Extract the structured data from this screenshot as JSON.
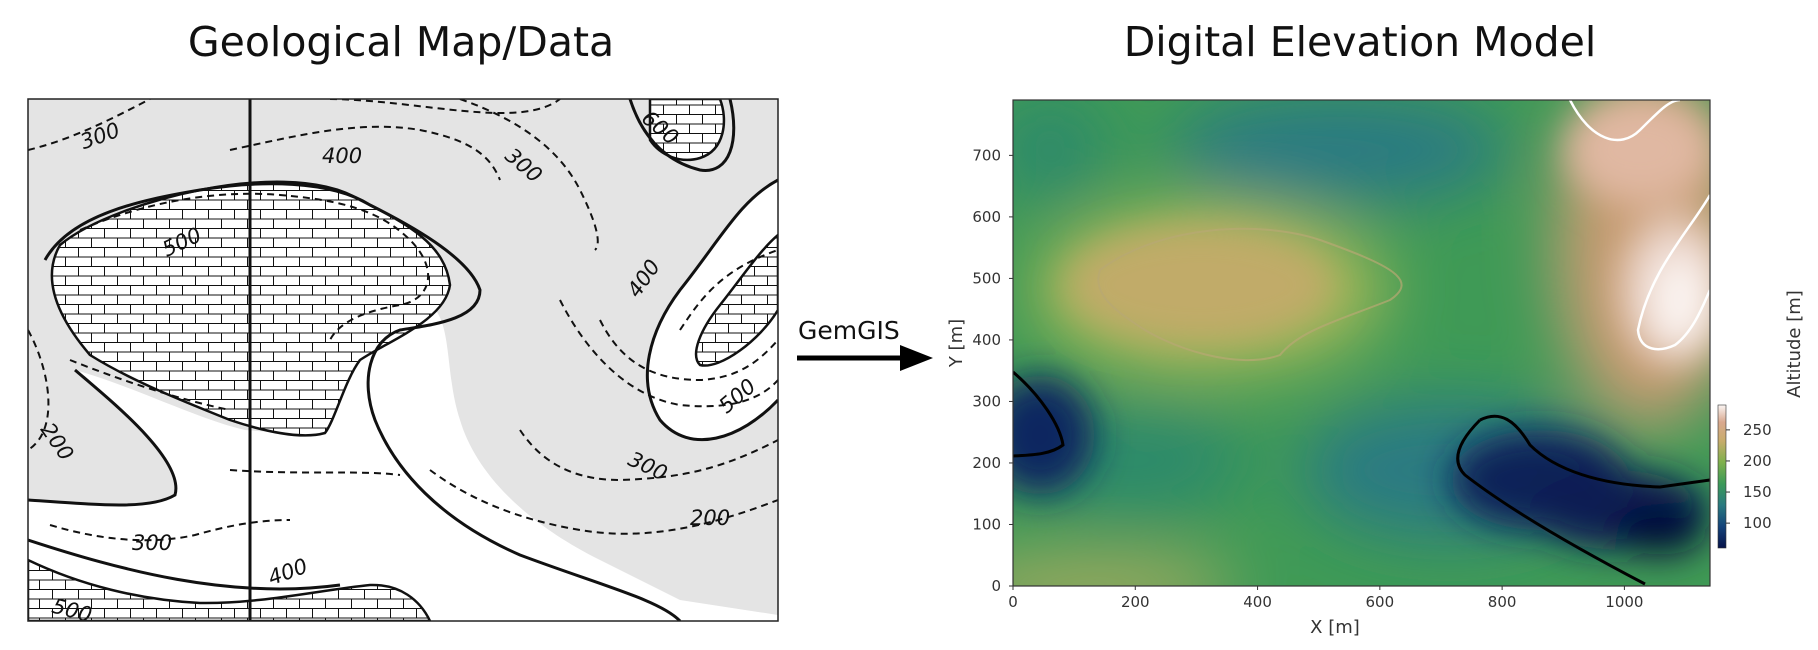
{
  "left_panel": {
    "title": "Geological Map/Data",
    "contour_labels": [
      "300",
      "400",
      "300",
      "600",
      "500",
      "400",
      "500",
      "200",
      "300",
      "200",
      "300",
      "400",
      "500"
    ]
  },
  "arrow": {
    "label": "GemGIS"
  },
  "right_panel": {
    "title": "Digital Elevation Model"
  },
  "chart_data": {
    "type": "heatmap",
    "title": "Digital Elevation Model",
    "xlabel": "X [m]",
    "ylabel": "Y [m]",
    "colorbar_label": "Altitude [m]",
    "xlim": [
      0,
      1140
    ],
    "ylim": [
      0,
      790
    ],
    "x_ticks": [
      "0",
      "200",
      "400",
      "600",
      "800",
      "1000"
    ],
    "y_ticks": [
      "0",
      "100",
      "200",
      "300",
      "400",
      "500",
      "600",
      "700"
    ],
    "colorbar_ticks": [
      "100",
      "150",
      "200",
      "250"
    ],
    "colorbar_range": [
      60,
      290
    ],
    "colormap": "gist_earth",
    "contour_levels": [
      100,
      300
    ],
    "grid": false
  }
}
